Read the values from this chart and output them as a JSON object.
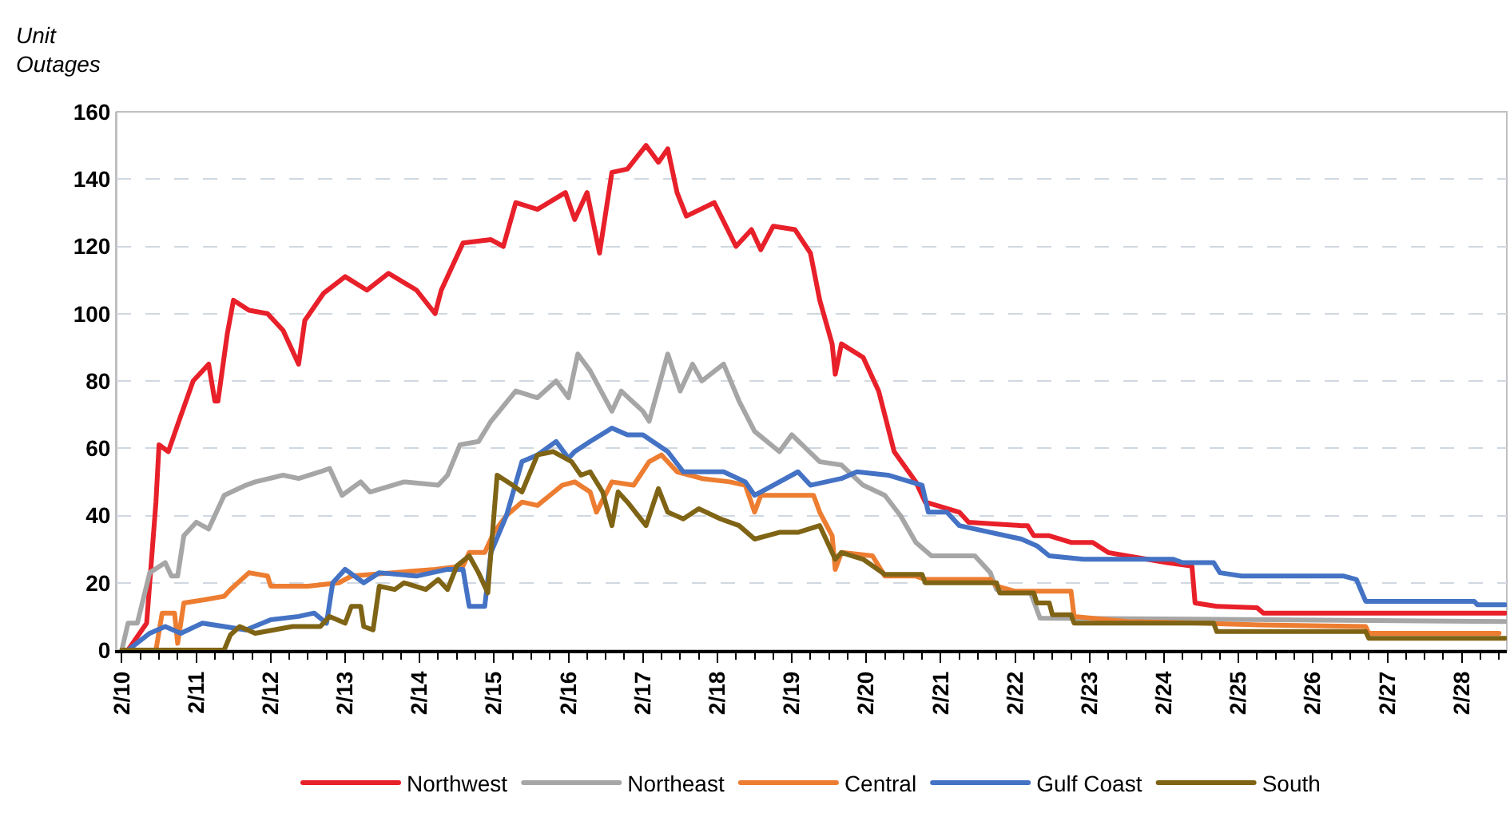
{
  "chart_data": {
    "type": "line",
    "ylabel": "Unit Outages",
    "xlim": [
      "--02-09T22:20",
      "--02-28T14:30"
    ],
    "ylim": [
      0,
      160
    ],
    "xticks": [
      {
        "value": "--02-10",
        "label": "2/10"
      },
      {
        "value": "--02-11",
        "label": "2/11"
      },
      {
        "value": "--02-12",
        "label": "2/12"
      },
      {
        "value": "--02-13",
        "label": "2/13"
      },
      {
        "value": "--02-14",
        "label": "2/14"
      },
      {
        "value": "--02-15",
        "label": "2/15"
      },
      {
        "value": "--02-16",
        "label": "2/16"
      },
      {
        "value": "--02-17",
        "label": "2/17"
      },
      {
        "value": "--02-18",
        "label": "2/18"
      },
      {
        "value": "--02-19",
        "label": "2/19"
      },
      {
        "value": "--02-20",
        "label": "2/20"
      },
      {
        "value": "--02-21",
        "label": "2/21"
      },
      {
        "value": "--02-22",
        "label": "2/22"
      },
      {
        "value": "--02-23",
        "label": "2/23"
      },
      {
        "value": "--02-24",
        "label": "2/24"
      },
      {
        "value": "--02-25",
        "label": "2/25"
      },
      {
        "value": "--02-26",
        "label": "2/26"
      },
      {
        "value": "--02-27",
        "label": "2/27"
      },
      {
        "value": "--02-28",
        "label": "2/28"
      }
    ],
    "yticks": [
      0,
      20,
      40,
      60,
      80,
      100,
      120,
      140,
      160
    ],
    "grid": "y",
    "legend": "bottom",
    "marker": "none",
    "line_style": "solid",
    "series": [
      {
        "name": "Northwest",
        "color": "#e8202a",
        "x": [
          "--02-10T02:00",
          "--02-10T08:00",
          "--02-10T11:00",
          "--02-10T12:00",
          "--02-10T15:00",
          "--02-10T18:00",
          "--02-10T23:00",
          "--02-11T04:00",
          "--02-11T06:00",
          "--02-11T07:00",
          "--02-11T10:00",
          "--02-11T12:00",
          "--02-11T17:00",
          "--02-11T23:00",
          "--02-12T04:00",
          "--02-12T09:00",
          "--02-12T11:00",
          "--02-12T17:00",
          "--02-13T00:00",
          "--02-13T07:00",
          "--02-13T14:00",
          "--02-13T23:00",
          "--02-14T05:00",
          "--02-14T07:00",
          "--02-14T14:00",
          "--02-14T23:00",
          "--02-15T03:00",
          "--02-15T07:00",
          "--02-15T14:00",
          "--02-15T23:00",
          "--02-16T02:00",
          "--02-16T06:00",
          "--02-16T10:00",
          "--02-16T14:00",
          "--02-16T19:00",
          "--02-17T01:00",
          "--02-17T05:00",
          "--02-17T08:00",
          "--02-17T11:00",
          "--02-17T14:00",
          "--02-17T23:00",
          "--02-18T06:00",
          "--02-18T11:00",
          "--02-18T14:00",
          "--02-18T18:00",
          "--02-19T01:00",
          "--02-19T06:00",
          "--02-19T09:00",
          "--02-19T13:00",
          "--02-19T14:00",
          "--02-19T16:00",
          "--02-19T23:00",
          "--02-20T04:00",
          "--02-20T09:00",
          "--02-20T16:00",
          "--02-20T19:00",
          "--02-21T06:00",
          "--02-21T09:00",
          "--02-22T02:00",
          "--02-22T04:00",
          "--02-22T06:00",
          "--02-22T11:00",
          "--02-22T18:00",
          "--02-23T01:00",
          "--02-23T06:00",
          "--02-23T12:00",
          "--02-24T01:00",
          "--02-24T09:00",
          "--02-24T10:00",
          "--02-24T17:00",
          "--02-25T06:00",
          "--02-25T08:00",
          "--02-28T14:00"
        ],
        "values": [
          0,
          8,
          44,
          61,
          59,
          67,
          80,
          85,
          74,
          74,
          94,
          104,
          101,
          100,
          95,
          85,
          98,
          106,
          111,
          107,
          112,
          107,
          100,
          107,
          121,
          122,
          120,
          133,
          131,
          136,
          128,
          136,
          118,
          142,
          143,
          150,
          145,
          149,
          136,
          129,
          133,
          120,
          125,
          119,
          126,
          125,
          118,
          104,
          91,
          82,
          91,
          87,
          77,
          59,
          50,
          44,
          41,
          38,
          37,
          37,
          34,
          34,
          32,
          32,
          29,
          28,
          26,
          25,
          14,
          13,
          12.6,
          11,
          11
        ]
      },
      {
        "name": "Northeast",
        "color": "#a6a6a6",
        "x": [
          "--02-10T00:00",
          "--02-10T02:00",
          "--02-10T05:00",
          "--02-10T09:00",
          "--02-10T14:00",
          "--02-10T16:00",
          "--02-10T18:00",
          "--02-10T20:00",
          "--02-11T00:00",
          "--02-11T04:00",
          "--02-11T09:00",
          "--02-11T16:00",
          "--02-11T19:00",
          "--02-12T04:00",
          "--02-12T09:00",
          "--02-12T16:00",
          "--02-12T19:00",
          "--02-12T23:00",
          "--02-13T05:00",
          "--02-13T08:00",
          "--02-13T19:00",
          "--02-14T06:00",
          "--02-14T09:00",
          "--02-14T13:00",
          "--02-14T19:00",
          "--02-14T23:00",
          "--02-15T07:00",
          "--02-15T14:00",
          "--02-15T20:00",
          "--02-16T00:00",
          "--02-16T03:00",
          "--02-16T07:00",
          "--02-16T14:00",
          "--02-16T17:00",
          "--02-17T00:00",
          "--02-17T02:00",
          "--02-17T08:00",
          "--02-17T12:00",
          "--02-17T16:00",
          "--02-17T19:00",
          "--02-18T02:00",
          "--02-18T07:00",
          "--02-18T12:00",
          "--02-18T20:00",
          "--02-19T00:00",
          "--02-19T09:00",
          "--02-19T16:00",
          "--02-19T23:00",
          "--02-20T06:00",
          "--02-20T11:00",
          "--02-20T16:00",
          "--02-20T21:00",
          "--02-21T11:00",
          "--02-21T16:00",
          "--02-21T18:00",
          "--02-22T05:00",
          "--02-22T08:00",
          "--02-28T14:00"
        ],
        "values": [
          0,
          8,
          8,
          23,
          26,
          22,
          22,
          34,
          38,
          36,
          46,
          49,
          50,
          52,
          51,
          53,
          54,
          46,
          50,
          47,
          50,
          49,
          52,
          61,
          62,
          68,
          77,
          75,
          80,
          75,
          88,
          83,
          71,
          77,
          71,
          68,
          88,
          77,
          85,
          80,
          85,
          74,
          65,
          59,
          64,
          56,
          55,
          49,
          46,
          40,
          32,
          28,
          28,
          23,
          18,
          17,
          9.5,
          8.5
        ]
      },
      {
        "name": "Central",
        "color": "#ed7d31",
        "x": [
          "--02-10T02:00",
          "--02-10T11:00",
          "--02-10T13:00",
          "--02-10T17:00",
          "--02-10T18:00",
          "--02-10T20:00",
          "--02-11T03:00",
          "--02-11T09:00",
          "--02-11T11:00",
          "--02-11T17:00",
          "--02-11T23:00",
          "--02-12T00:00",
          "--02-12T12:00",
          "--02-12T22:00",
          "--02-13T02:00",
          "--02-14T05:00",
          "--02-14T14:00",
          "--02-14T16:00",
          "--02-14T21:00",
          "--02-15T00:00",
          "--02-15T04:00",
          "--02-15T09:00",
          "--02-15T14:00",
          "--02-15T18:00",
          "--02-15T22:00",
          "--02-16T02:00",
          "--02-16T07:00",
          "--02-16T09:00",
          "--02-16T14:00",
          "--02-16T21:00",
          "--02-17T02:00",
          "--02-17T06:00",
          "--02-17T11:00",
          "--02-17T19:00",
          "--02-18T04:00",
          "--02-18T09:00",
          "--02-18T12:00",
          "--02-18T14:00",
          "--02-19T01:00",
          "--02-19T07:00",
          "--02-19T09:00",
          "--02-19T13:00",
          "--02-19T14:00",
          "--02-19T16:00",
          "--02-20T02:00",
          "--02-20T06:00",
          "--02-20T16:00",
          "--02-20T19:00",
          "--02-21T16:00",
          "--02-21T18:00",
          "--02-22T00:00",
          "--02-22T18:00",
          "--02-22T19:00",
          "--02-23T12:00",
          "--02-24T12:00",
          "--02-25T07:00",
          "--02-26T17:00",
          "--02-26T18:00",
          "--02-28T12:00"
        ],
        "values": [
          0,
          0,
          11,
          11,
          2,
          14,
          15,
          16,
          18,
          23,
          22,
          19,
          19,
          20,
          22,
          24,
          25,
          29,
          29,
          35,
          40,
          44,
          43,
          46,
          49,
          50,
          47,
          41,
          50,
          49,
          56,
          58,
          53,
          51,
          50,
          49,
          41,
          46,
          46,
          46,
          41,
          34,
          24,
          29,
          28,
          22,
          22,
          21,
          21,
          19,
          17.5,
          17.5,
          10,
          8.5,
          8,
          7.5,
          7,
          5,
          5
        ]
      },
      {
        "name": "Gulf Coast",
        "color": "#4472c4",
        "x": [
          "--02-10T02:00",
          "--02-10T09:00",
          "--02-10T14:00",
          "--02-10T19:00",
          "--02-11T02:00",
          "--02-11T16:00",
          "--02-12T00:00",
          "--02-12T09:00",
          "--02-12T14:00",
          "--02-12T18:00",
          "--02-12T20:00",
          "--02-13T00:00",
          "--02-13T06:00",
          "--02-13T11:00",
          "--02-13T23:00",
          "--02-14T09:00",
          "--02-14T14:00",
          "--02-14T16:00",
          "--02-14T21:00",
          "--02-14T23:00",
          "--02-15T04:00",
          "--02-15T09:00",
          "--02-15T14:00",
          "--02-15T20:00",
          "--02-16T00:00",
          "--02-16T02:00",
          "--02-16T07:00",
          "--02-16T14:00",
          "--02-16T19:00",
          "--02-17T00:00",
          "--02-17T08:00",
          "--02-17T13:00",
          "--02-17T19:00",
          "--02-18T02:00",
          "--02-18T09:00",
          "--02-18T12:00",
          "--02-18T16:00",
          "--02-19T02:00",
          "--02-19T06:00",
          "--02-19T16:00",
          "--02-19T21:00",
          "--02-20T07:00",
          "--02-20T18:00",
          "--02-20T20:00",
          "--02-21T02:00",
          "--02-21T06:00",
          "--02-22T02:00",
          "--02-22T07:00",
          "--02-22T11:00",
          "--02-22T22:00",
          "--02-24T03:00",
          "--02-24T06:00",
          "--02-24T16:00",
          "--02-24T18:00",
          "--02-25T01:00",
          "--02-26T10:00",
          "--02-26T14:00",
          "--02-26T17:00",
          "--02-28T04:00",
          "--02-28T05:00",
          "--02-28T14:00"
        ],
        "values": [
          0,
          5,
          7,
          5,
          8,
          6,
          9,
          10,
          11,
          8,
          20,
          24,
          20,
          23,
          22,
          24,
          24,
          13,
          13,
          29,
          40,
          56,
          58,
          62,
          57,
          59,
          62,
          66,
          64,
          64,
          59,
          53,
          53,
          53,
          50,
          46,
          48,
          53,
          49,
          51,
          53,
          52,
          49,
          41,
          41,
          37,
          33,
          31,
          28,
          27,
          27,
          26,
          26,
          23,
          22,
          22,
          21,
          14.5,
          14.5,
          13.5,
          13.5
        ]
      },
      {
        "name": "South",
        "color": "#7f6415",
        "x": [
          "--02-10T00:00",
          "--02-11T09:00",
          "--02-11T11:00",
          "--02-11T14:00",
          "--02-11T19:00",
          "--02-12T07:00",
          "--02-12T16:00",
          "--02-12T19:00",
          "--02-13T00:00",
          "--02-13T02:00",
          "--02-13T05:00",
          "--02-13T06:00",
          "--02-13T09:00",
          "--02-13T11:00",
          "--02-13T16:00",
          "--02-13T19:00",
          "--02-14T02:00",
          "--02-14T06:00",
          "--02-14T09:00",
          "--02-14T12:00",
          "--02-14T16:00",
          "--02-14T19:00",
          "--02-14T22:00",
          "--02-14T23:00",
          "--02-15T01:00",
          "--02-15T06:00",
          "--02-15T09:00",
          "--02-15T14:00",
          "--02-15T19:00",
          "--02-16T01:00",
          "--02-16T04:00",
          "--02-16T07:00",
          "--02-16T11:00",
          "--02-16T14:00",
          "--02-16T16:00",
          "--02-16T19:00",
          "--02-17T01:00",
          "--02-17T05:00",
          "--02-17T08:00",
          "--02-17T13:00",
          "--02-17T18:00",
          "--02-18T01:00",
          "--02-18T07:00",
          "--02-18T12:00",
          "--02-18T20:00",
          "--02-19T02:00",
          "--02-19T09:00",
          "--02-19T11:00",
          "--02-19T14:00",
          "--02-19T16:00",
          "--02-19T23:00",
          "--02-20T06:00",
          "--02-20T18:00",
          "--02-20T19:00",
          "--02-21T18:00",
          "--02-21T19:00",
          "--02-22T06:00",
          "--02-22T07:00",
          "--02-22T11:00",
          "--02-22T12:00",
          "--02-22T18:00",
          "--02-22T19:00",
          "--02-24T16:00",
          "--02-24T17:00",
          "--02-26T17:00",
          "--02-26T18:00",
          "--02-28T14:00"
        ],
        "values": [
          0,
          0,
          4.5,
          7,
          5,
          7,
          7,
          10,
          8,
          13,
          13,
          7,
          6,
          19,
          18,
          20,
          18,
          21,
          18,
          25,
          28,
          23,
          17,
          29,
          52,
          49,
          47,
          58,
          59,
          56,
          52,
          53,
          47,
          37,
          47,
          44,
          37,
          48,
          41,
          39,
          42,
          39,
          37,
          33,
          35,
          35,
          37,
          33,
          27,
          29,
          27,
          22.5,
          22.5,
          20,
          20,
          17,
          17,
          14,
          14,
          10.5,
          10.5,
          8,
          8,
          5.5,
          5.5,
          3.5,
          3.5
        ]
      }
    ]
  }
}
